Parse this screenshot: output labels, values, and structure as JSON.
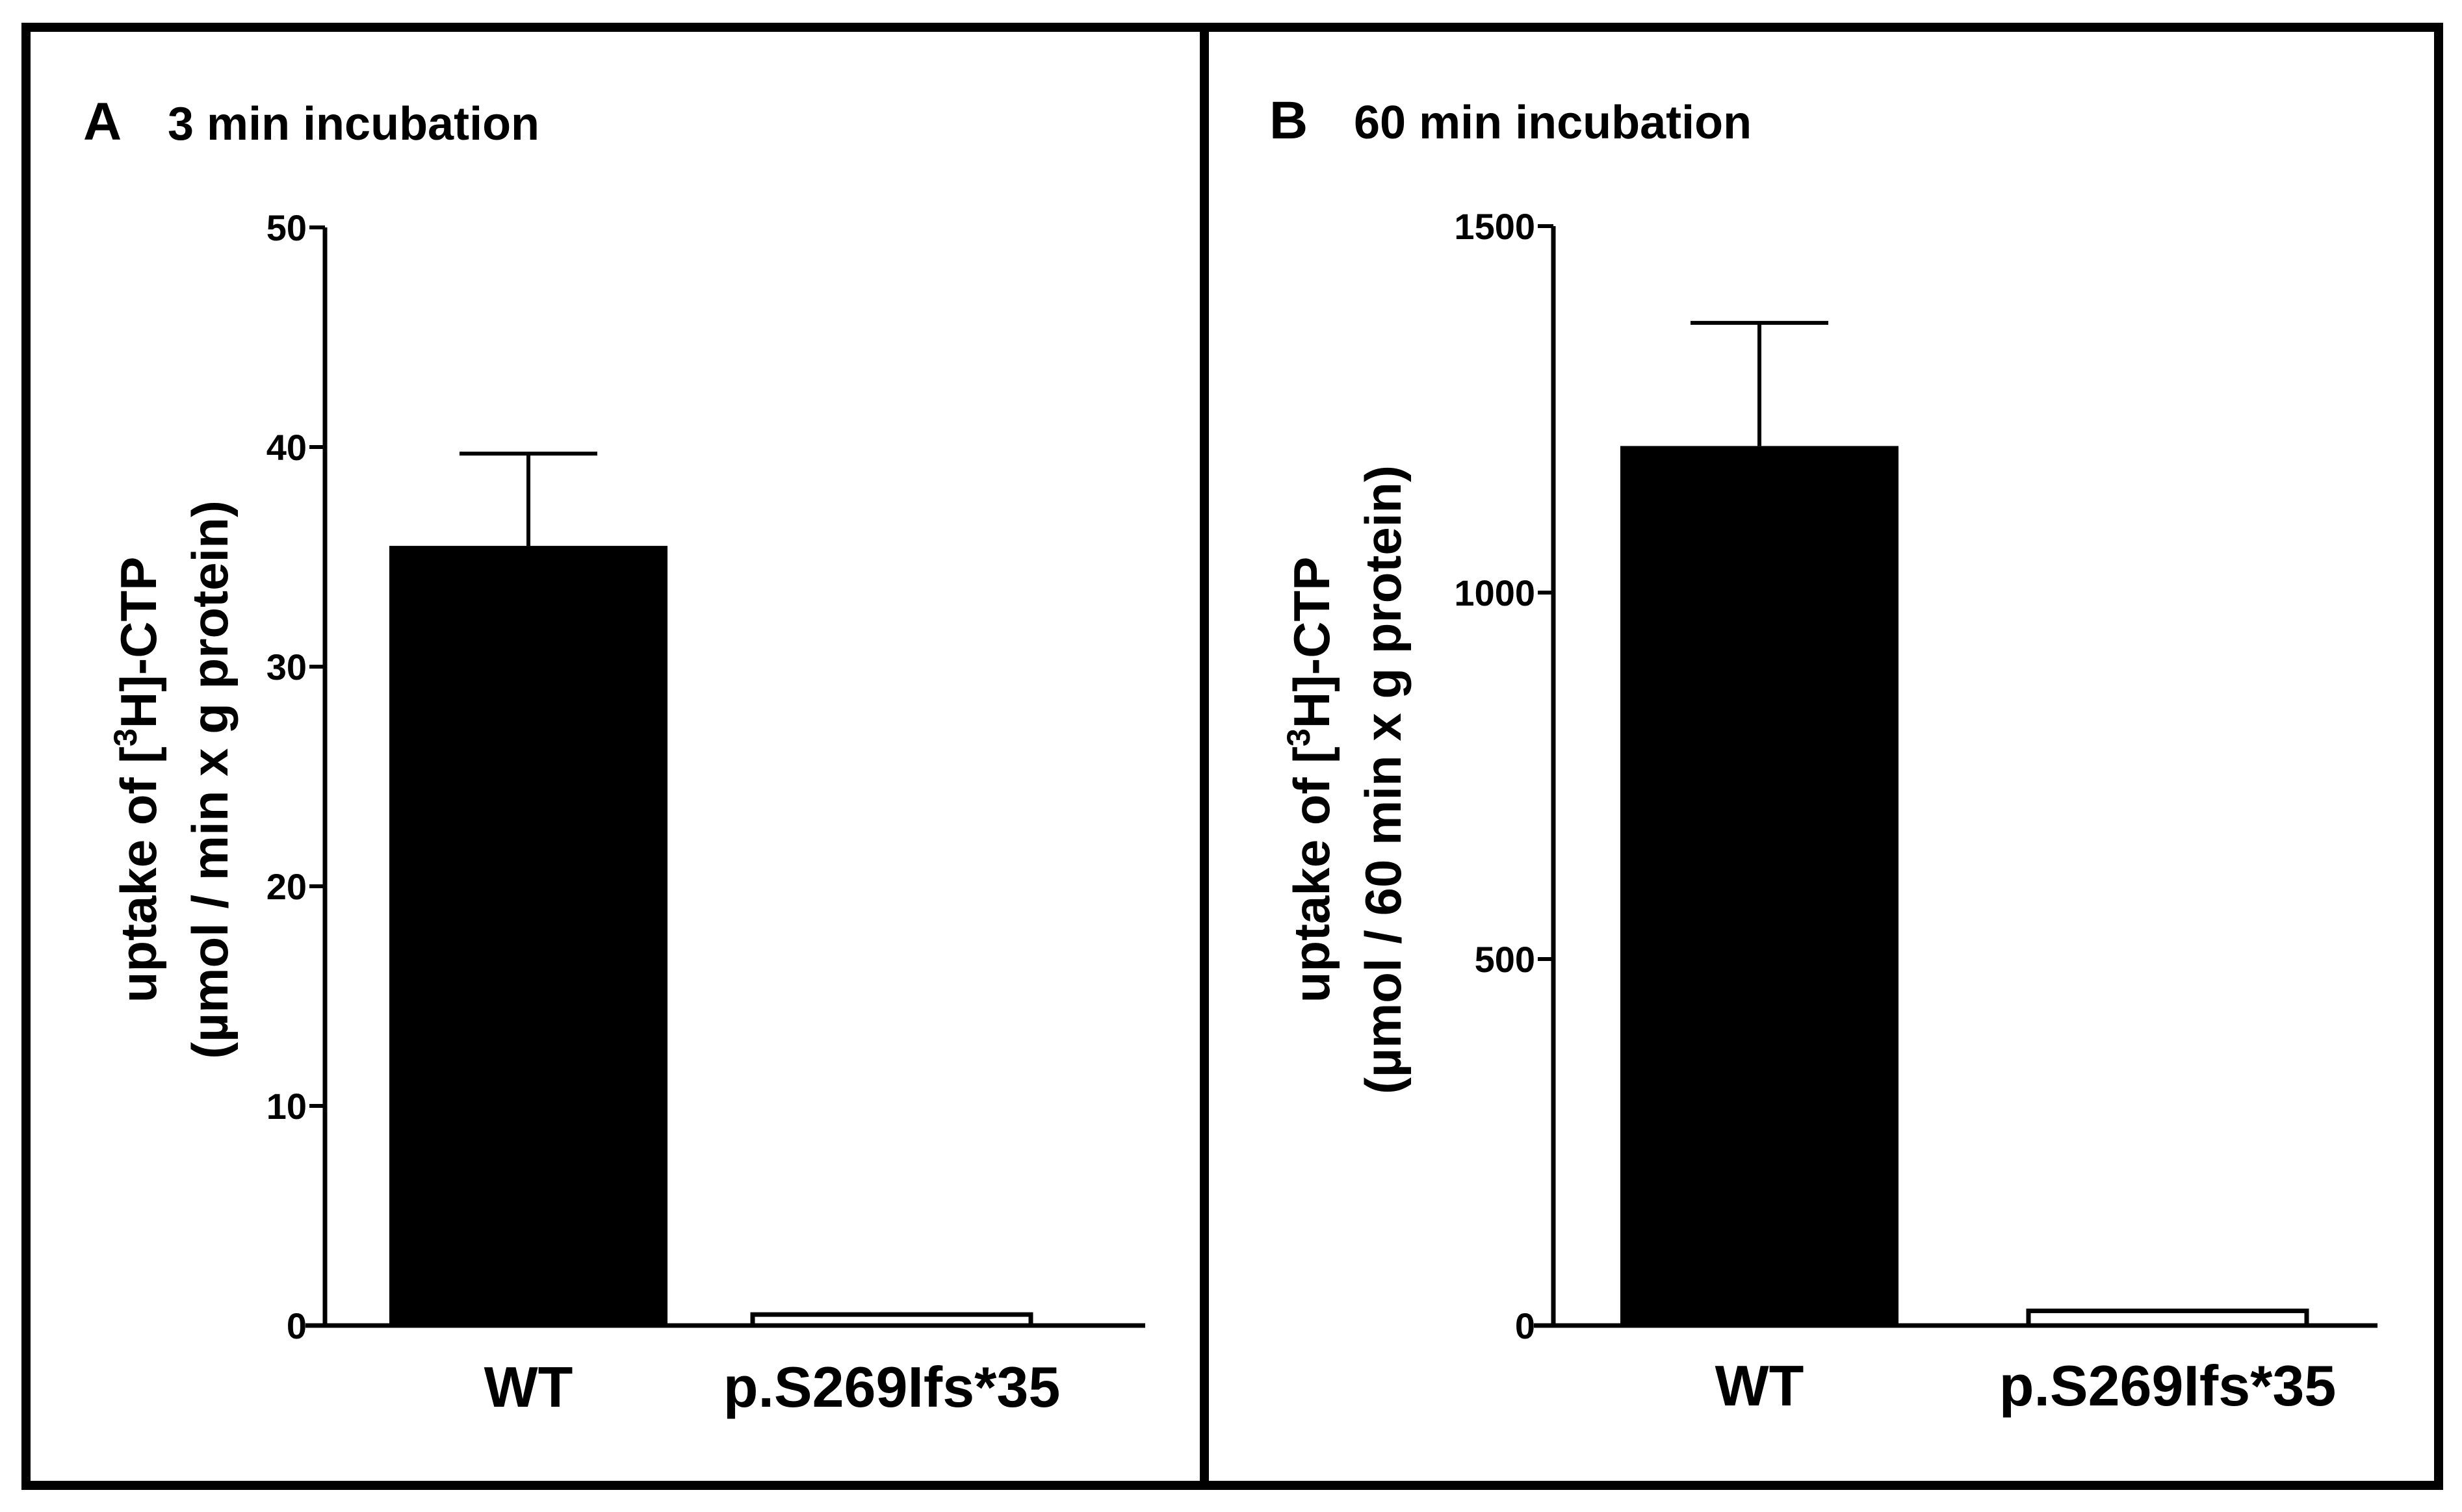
{
  "chart_data": [
    {
      "type": "bar",
      "panel_label": "A",
      "title": "3 min incubation",
      "categories": [
        "WT",
        "p.S269Ifs*35"
      ],
      "values": [
        35.5,
        0.5
      ],
      "error_upper": [
        39.7,
        0.6
      ],
      "bar_fill": [
        "#000000",
        "#ffffff"
      ],
      "ylabel_line1": {
        "pre": "uptake of [",
        "sup": "3",
        "post": "H]-CTP"
      },
      "ylabel_line2": "(µmol / min x g protein)",
      "ylim": [
        0,
        50
      ],
      "ytick_values": [
        0,
        10,
        20,
        30,
        40,
        50
      ],
      "ytick_labels": [
        "0",
        "10",
        "20",
        "30",
        "40",
        "50"
      ],
      "grid": false
    },
    {
      "type": "bar",
      "panel_label": "B",
      "title": "60 min incubation",
      "categories": [
        "WT",
        "p.S269Ifs*35"
      ],
      "values": [
        1200,
        20
      ],
      "error_upper": [
        1368,
        25
      ],
      "bar_fill": [
        "#000000",
        "#ffffff"
      ],
      "ylabel_line1": {
        "pre": "uptake of [",
        "sup": "3",
        "post": "H]-CTP"
      },
      "ylabel_line2": "(µmol / 60 min x g protein)",
      "ylim": [
        0,
        1500
      ],
      "ytick_values": [
        0,
        500,
        1000,
        1500
      ],
      "ytick_labels": [
        "0",
        "500",
        "1000",
        "1500"
      ],
      "grid": false
    }
  ]
}
